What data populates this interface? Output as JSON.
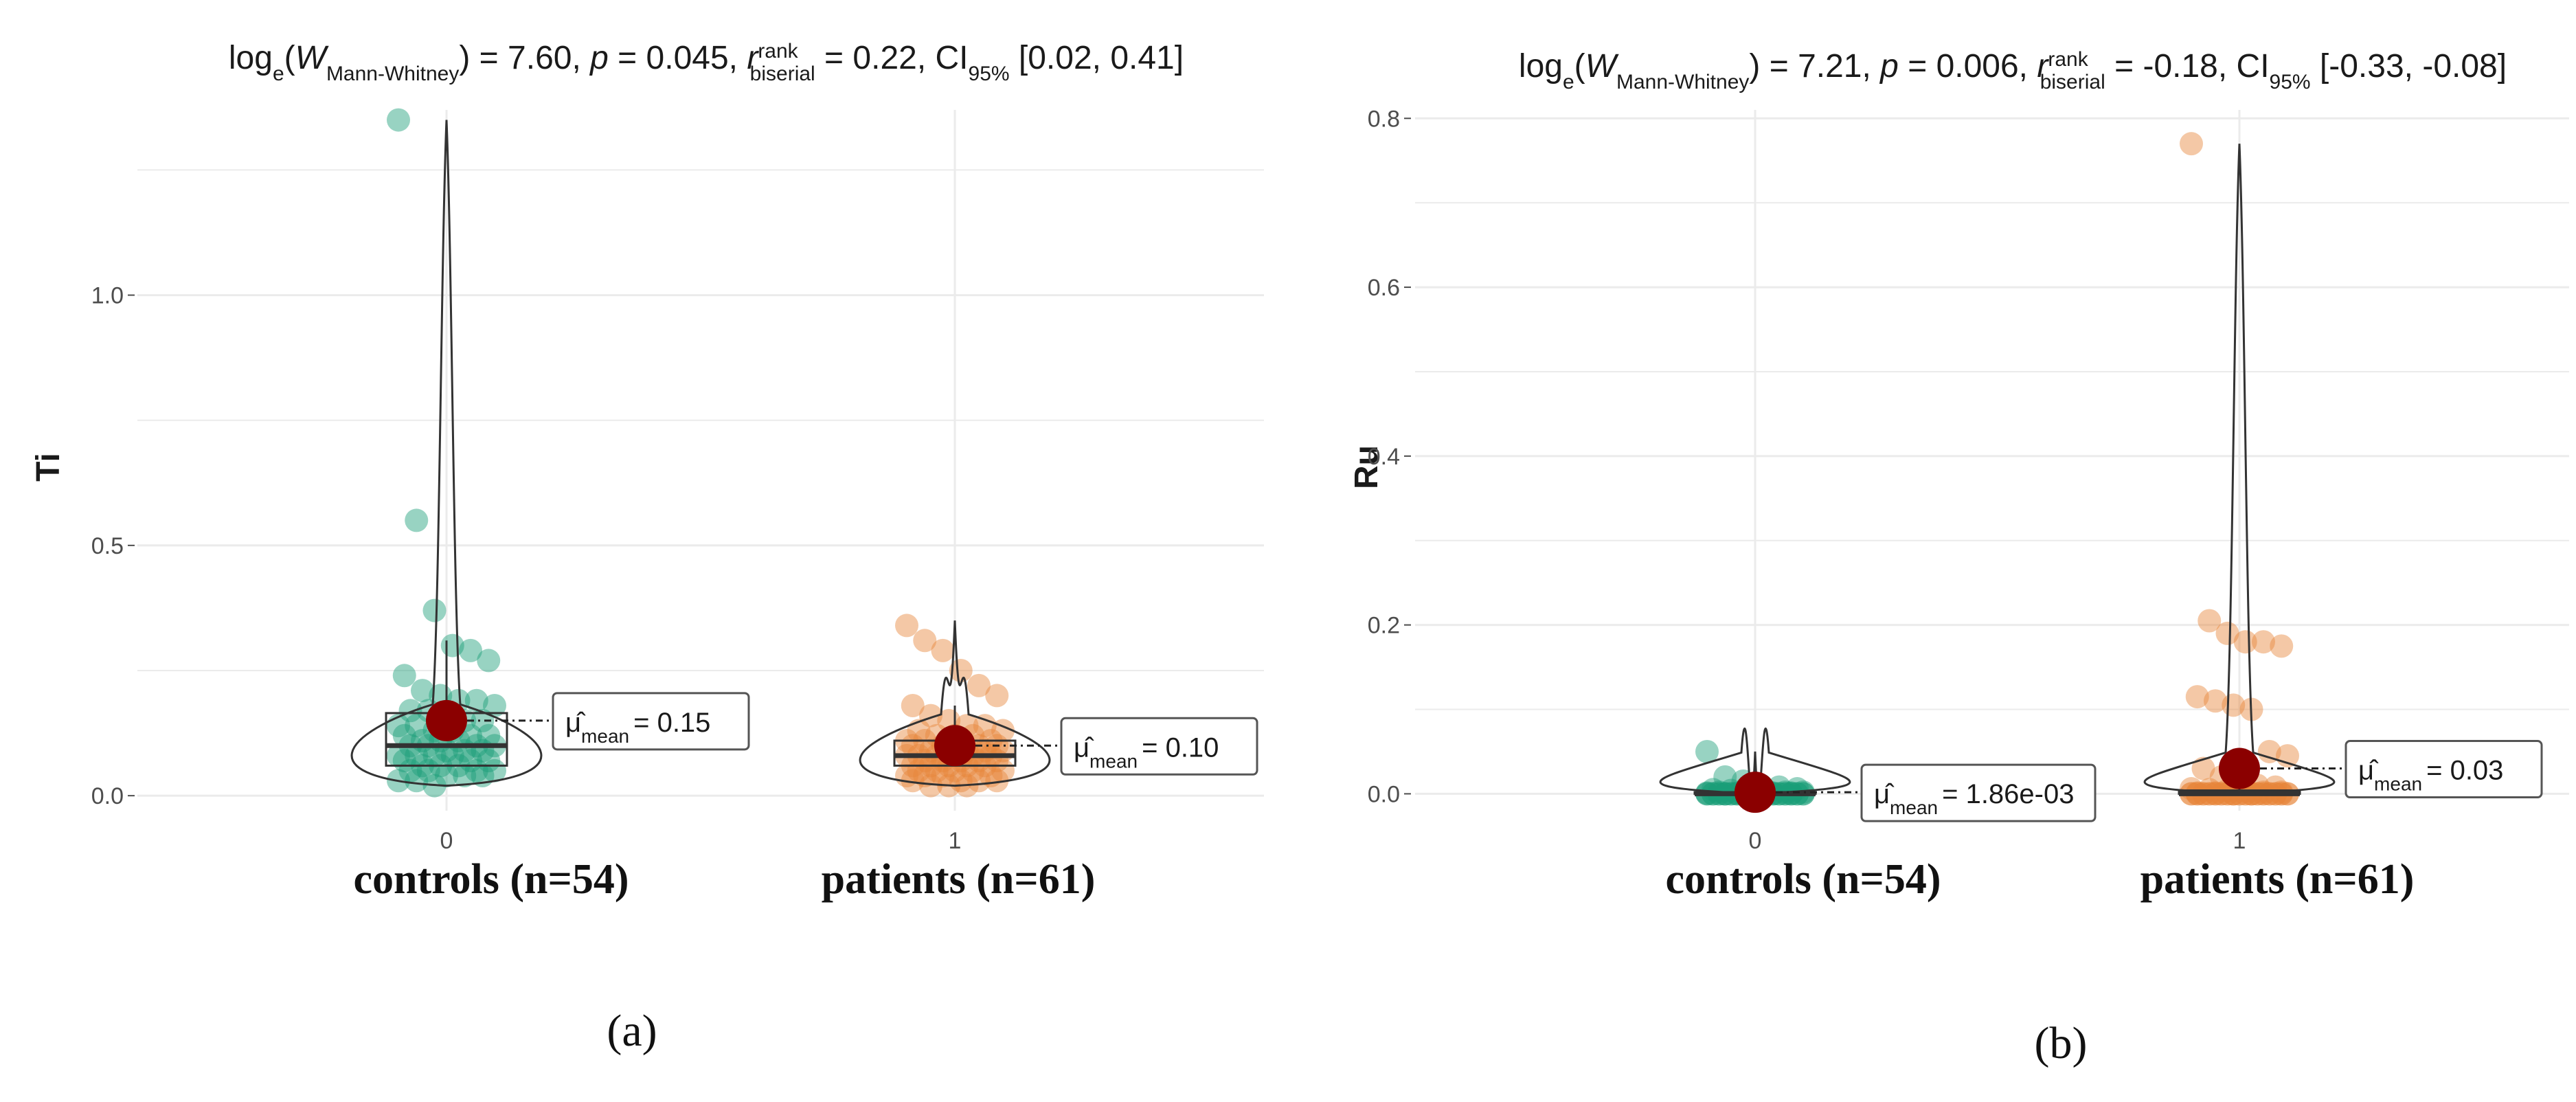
{
  "colors": {
    "controls": "#1b9e77",
    "patients": "#e6853a",
    "mean_point": "#8b0000",
    "grid": "#ebebeb",
    "outline": "#333333"
  },
  "chart_data": [
    {
      "type": "scatter",
      "subtype": "violin-box-jitter (ggbetweenstats)",
      "panel_label": "(a)",
      "subtitle": {
        "pre": "log",
        "sub_e": "e",
        "open": "(",
        "W": "W",
        "W_sub": "Mann-Whitney",
        "stat": ") = 7.60, ",
        "p": "p",
        "p_val": " = 0.045, ",
        "r": "r",
        "r_sup": "rank",
        "r_sub": "biserial",
        "r_val": " = 0.22, CI",
        "ci_sub": "95%",
        "ci_val": " [0.02, 0.41]"
      },
      "ylabel": "Ti",
      "xlabel": "",
      "ylim": [
        -0.03,
        1.37
      ],
      "yticks": [
        0.0,
        0.5,
        1.0
      ],
      "ytick_labels": [
        "0.0",
        "0.5",
        "1.0"
      ],
      "categories": [
        "0",
        "1"
      ],
      "group_labels": [
        "controls (n=54)",
        "patients (n=61)"
      ],
      "grid": true,
      "series": [
        {
          "name": "controls",
          "n": 54,
          "mean": 0.15,
          "mean_label": "= 0.15",
          "median": 0.1,
          "q1": 0.06,
          "q3": 0.165,
          "whisker_low": 0.02,
          "whisker_high": 0.31,
          "violin_max": 1.35,
          "points": [
            1.35,
            0.55,
            0.37,
            0.3,
            0.29,
            0.27,
            0.24,
            0.21,
            0.2,
            0.19,
            0.19,
            0.18,
            0.17,
            0.17,
            0.16,
            0.15,
            0.15,
            0.14,
            0.14,
            0.13,
            0.13,
            0.12,
            0.12,
            0.12,
            0.11,
            0.11,
            0.11,
            0.1,
            0.1,
            0.1,
            0.1,
            0.09,
            0.09,
            0.09,
            0.08,
            0.08,
            0.08,
            0.08,
            0.07,
            0.07,
            0.07,
            0.06,
            0.06,
            0.06,
            0.05,
            0.05,
            0.05,
            0.05,
            0.04,
            0.04,
            0.04,
            0.03,
            0.03,
            0.02
          ]
        },
        {
          "name": "patients",
          "n": 61,
          "mean": 0.1,
          "mean_label": "= 0.10",
          "median": 0.08,
          "q1": 0.06,
          "q3": 0.11,
          "whisker_low": 0.02,
          "whisker_high": 0.18,
          "violin_max": 0.35,
          "points": [
            0.34,
            0.31,
            0.29,
            0.25,
            0.22,
            0.2,
            0.18,
            0.16,
            0.15,
            0.14,
            0.14,
            0.13,
            0.13,
            0.12,
            0.12,
            0.12,
            0.11,
            0.11,
            0.11,
            0.1,
            0.1,
            0.1,
            0.1,
            0.1,
            0.09,
            0.09,
            0.09,
            0.09,
            0.09,
            0.08,
            0.08,
            0.08,
            0.08,
            0.08,
            0.08,
            0.07,
            0.07,
            0.07,
            0.07,
            0.07,
            0.06,
            0.06,
            0.06,
            0.06,
            0.06,
            0.05,
            0.05,
            0.05,
            0.05,
            0.05,
            0.04,
            0.04,
            0.04,
            0.04,
            0.03,
            0.03,
            0.03,
            0.03,
            0.02,
            0.02,
            0.02
          ]
        }
      ]
    },
    {
      "type": "scatter",
      "subtype": "violin-box-jitter (ggbetweenstats)",
      "panel_label": "(b)",
      "subtitle": {
        "pre": "log",
        "sub_e": "e",
        "open": "(",
        "W": "W",
        "W_sub": "Mann-Whitney",
        "stat": ") = 7.21, ",
        "p": "p",
        "p_val": " = 0.006, ",
        "r": "r",
        "r_sup": "rank",
        "r_sub": "biserial",
        "r_val": " = -0.18, CI",
        "ci_sub": "95%",
        "ci_val": " [-0.33, -0.08]"
      },
      "ylabel": "Ru",
      "xlabel": "",
      "ylim": [
        -0.02,
        0.81
      ],
      "yticks": [
        0.0,
        0.2,
        0.4,
        0.6,
        0.8
      ],
      "ytick_labels": [
        "0.0",
        "0.2",
        "0.4",
        "0.6",
        "0.8"
      ],
      "categories": [
        "0",
        "1"
      ],
      "group_labels": [
        "controls (n=54)",
        "patients (n=61)"
      ],
      "grid": true,
      "series": [
        {
          "name": "controls",
          "n": 54,
          "mean": 0.00186,
          "mean_label": "= 1.86e-03",
          "median": 0.0,
          "q1": 0.0,
          "q3": 0.002,
          "whisker_low": 0.0,
          "whisker_high": 0.004,
          "violin_max": 0.05,
          "points": [
            0.05,
            0.02,
            0.015,
            0.01,
            0.008,
            0.006,
            0.005,
            0.004,
            0.003,
            0.003,
            0.002,
            0.002,
            0.002,
            0.001,
            0.001,
            0.001,
            0.001,
            0.001,
            0.0,
            0.0,
            0.0,
            0.0,
            0.0,
            0.0,
            0.0,
            0.0,
            0.0,
            0.0,
            0.0,
            0.0,
            0.0,
            0.0,
            0.0,
            0.0,
            0.0,
            0.0,
            0.0,
            0.0,
            0.0,
            0.0,
            0.0,
            0.0,
            0.0,
            0.0,
            0.0,
            0.0,
            0.0,
            0.0,
            0.0,
            0.0,
            0.0,
            0.0,
            0.0,
            0.0
          ]
        },
        {
          "name": "patients",
          "n": 61,
          "mean": 0.03,
          "mean_label": "= 0.03",
          "median": 0.0,
          "q1": 0.0,
          "q3": 0.004,
          "whisker_low": 0.0,
          "whisker_high": 0.01,
          "violin_max": 0.77,
          "points": [
            0.77,
            0.205,
            0.19,
            0.18,
            0.18,
            0.175,
            0.115,
            0.11,
            0.105,
            0.1,
            0.05,
            0.045,
            0.03,
            0.02,
            0.015,
            0.01,
            0.008,
            0.006,
            0.005,
            0.004,
            0.003,
            0.002,
            0.002,
            0.001,
            0.001,
            0.0,
            0.0,
            0.0,
            0.0,
            0.0,
            0.0,
            0.0,
            0.0,
            0.0,
            0.0,
            0.0,
            0.0,
            0.0,
            0.0,
            0.0,
            0.0,
            0.0,
            0.0,
            0.0,
            0.0,
            0.0,
            0.0,
            0.0,
            0.0,
            0.0,
            0.0,
            0.0,
            0.0,
            0.0,
            0.0,
            0.0,
            0.0,
            0.0,
            0.0,
            0.0,
            0.0
          ]
        }
      ]
    }
  ],
  "mean_symbol": "μ̂",
  "mean_sub": "mean"
}
